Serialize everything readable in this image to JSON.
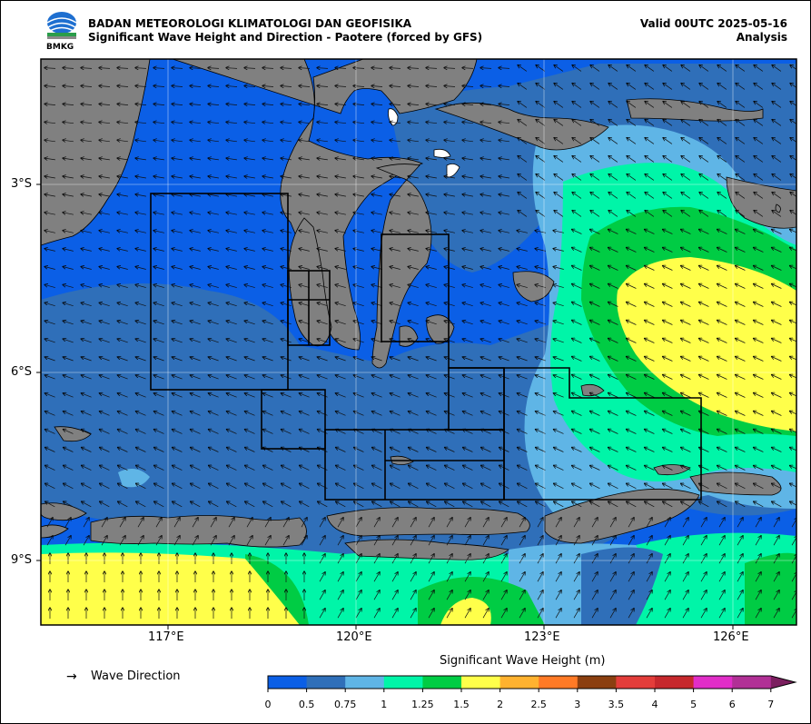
{
  "header": {
    "agency": "BADAN METEOROLOGI KLIMATOLOGI DAN GEOFISIKA",
    "product": "Significant Wave Height and Direction - Paotere (forced by GFS)",
    "valid": "Valid 00UTC 2025-05-16",
    "mode": "Analysis",
    "logo_text": "BMKG"
  },
  "axes": {
    "lat_labels": [
      "3°S",
      "6°S",
      "9°S"
    ],
    "lon_labels": [
      "117°E",
      "120°E",
      "123°E",
      "126°E"
    ]
  },
  "legend": {
    "wave_direction_symbol": "→",
    "wave_direction_label": "Wave Direction"
  },
  "colorbar": {
    "title": "Significant Wave Height (m)",
    "ticks": [
      "0",
      "0.5",
      "0.75",
      "1",
      "1.25",
      "1.5",
      "2",
      "2.5",
      "3",
      "3.5",
      "4",
      "5",
      "6",
      "7"
    ],
    "colors": [
      "#0b5fe6",
      "#2f6fb9",
      "#5fb5e6",
      "#00f5a8",
      "#00cc44",
      "#ffff4a",
      "#ffb22f",
      "#ff7a26",
      "#8b3f10",
      "#e33d3a",
      "#c6282d",
      "#e12ec8",
      "#b13096"
    ],
    "extend_color": "#7b1f5f"
  },
  "map_colors": {
    "land": "#808080",
    "sea_0_05": "#0b5fe6",
    "sea_05_075": "#2f6fb9",
    "sea_075_1": "#5fb5e6",
    "sea_1_125": "#00f5a8",
    "sea_125_15": "#00cc44",
    "sea_15_2": "#ffff4a"
  }
}
